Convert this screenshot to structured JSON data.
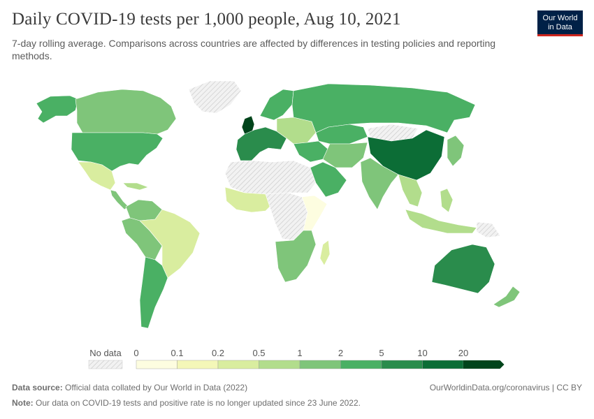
{
  "title": "Daily COVID-19 tests per 1,000 people, Aug 10, 2021",
  "subtitle": "7-day rolling average. Comparisons across countries are affected by differences in testing policies and reporting methods.",
  "logo": {
    "line1": "Our World",
    "line2": "in Data",
    "bg_color": "#002147",
    "accent_color": "#ce261e"
  },
  "legend": {
    "no_data_label": "No data",
    "breaks": [
      "0",
      "0.1",
      "0.2",
      "0.5",
      "1",
      "2",
      "5",
      "10",
      "20"
    ],
    "colors": [
      "#fdfde0",
      "#f4f7b8",
      "#d9ed9f",
      "#b2dd8c",
      "#7fc57a",
      "#4ab064",
      "#2a8c4c",
      "#0c6d36",
      "#00441b"
    ],
    "no_data_color": "#f2f2f2"
  },
  "footer": {
    "source_label": "Data source:",
    "source_text": "Official data collated by Our World in Data (2022)",
    "note_label": "Note:",
    "note_text": "Our data on COVID-19 tests and positive rate is no longer updated since 23 June 2022.",
    "credit": "OurWorldinData.org/coronavirus | CC BY"
  },
  "regions": [
    {
      "name": "canada-region",
      "value": 1.5
    },
    {
      "name": "alaska-region",
      "value": 3
    },
    {
      "name": "greenland-region",
      "value": null
    },
    {
      "name": "usa-region",
      "value": 3
    },
    {
      "name": "mexico-region",
      "value": 0.3
    },
    {
      "name": "central-america-region",
      "value": 1.2
    },
    {
      "name": "caribbean-region",
      "value": 0.8
    },
    {
      "name": "colombia-venezuela-region",
      "value": 1.2
    },
    {
      "name": "brazil-region",
      "value": 0.3
    },
    {
      "name": "peru-bolivia-region",
      "value": 1.2
    },
    {
      "name": "argentina-chile-region",
      "value": 3
    },
    {
      "name": "uk-region",
      "value": 20
    },
    {
      "name": "western-europe-region",
      "value": 7
    },
    {
      "name": "eastern-europe-region",
      "value": 0.8
    },
    {
      "name": "scandinavia-region",
      "value": 4
    },
    {
      "name": "russia-region",
      "value": 3
    },
    {
      "name": "north-africa-region",
      "value": null
    },
    {
      "name": "west-africa-region",
      "value": 0.3
    },
    {
      "name": "central-africa-region",
      "value": null
    },
    {
      "name": "east-africa-region",
      "value": 0.05
    },
    {
      "name": "southern-africa-region",
      "value": 1.5
    },
    {
      "name": "madagascar-region",
      "value": 0.3
    },
    {
      "name": "middle-east-region",
      "value": 3
    },
    {
      "name": "arabia-region",
      "value": 3
    },
    {
      "name": "iran-central-asia-region",
      "value": 1.2
    },
    {
      "name": "kazakhstan-region",
      "value": 3
    },
    {
      "name": "mongolia-region",
      "value": null
    },
    {
      "name": "china-region",
      "value": 12
    },
    {
      "name": "india-region",
      "value": 1.5
    },
    {
      "name": "southeast-asia-region",
      "value": 0.8
    },
    {
      "name": "japan-korea-region",
      "value": 1.5
    },
    {
      "name": "indonesia-region",
      "value": 0.8
    },
    {
      "name": "philippines-region",
      "value": 0.8
    },
    {
      "name": "australia-region",
      "value": 7
    },
    {
      "name": "new-zealand-region",
      "value": 1.5
    },
    {
      "name": "papua-region",
      "value": null
    }
  ]
}
